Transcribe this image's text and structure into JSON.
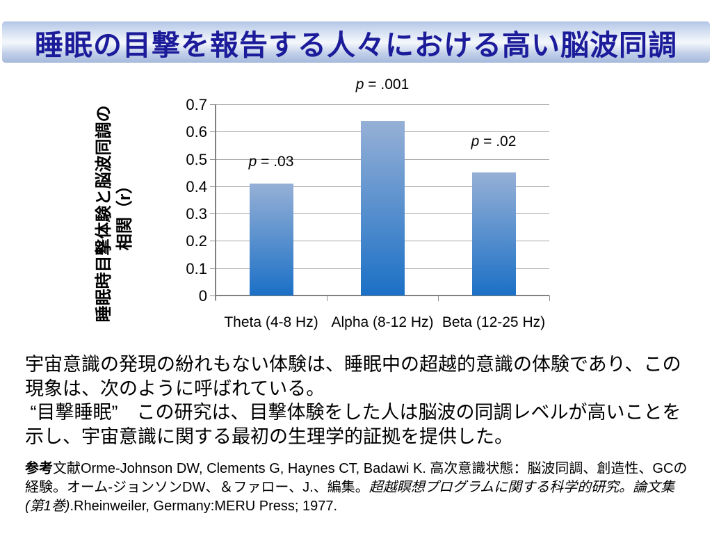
{
  "slide": {
    "title": "睡眠の目撃を報告する人々における高い脳波同調",
    "title_color": "#1c1c9b",
    "band_color_top": "#b7c9e8",
    "band_color_bottom": "#a8bbde"
  },
  "chart_data": {
    "type": "bar",
    "title": "",
    "categories": [
      "Theta (4-8 Hz)",
      "Alpha (8-12 Hz)",
      "Beta (12-25 Hz)"
    ],
    "values": [
      0.41,
      0.64,
      0.45
    ],
    "p_labels": [
      "p = .03",
      "p = .001",
      "p = .02"
    ],
    "ylabel_line1": "睡眠時目撃体験と脳波同調の",
    "ylabel_line2": "相関（r）",
    "xlabel": "",
    "ylim": [
      0,
      0.7
    ],
    "ytick_labels": [
      "0",
      "0.1",
      "0.2",
      "0.3",
      "0.4",
      "0.5",
      "0.6",
      "0.7"
    ],
    "grid": true,
    "legend": false,
    "bar_color_top": "#96b0d6",
    "bar_color_bottom": "#1b70c6",
    "gridline_color": "#a6a6a6",
    "axis_color": "#808080"
  },
  "body": {
    "paragraph1": "宇宙意識の発現の紛れもない体験は、睡眠中の超越的意識の体験であり、この現象は、次のように呼ばれている。",
    "paragraph2": " “目撃睡眠”　この研究は、目撃体験をした人は脳波の同調レベルが高いことを示し、宇宙意識に関する最初の生理学的証拠を提供した。"
  },
  "reference": {
    "bold": "参考",
    "normal1": "文献Orme-Johnson DW, Clements G, Haynes CT, Badawi K. 高次意識状態：脳波同調、創造性、GCの経験。オーム-ジョンソンDW、＆ファロー、J.、編集。",
    "italic": "超越瞑想プログラムに関する科学的研究。論文集(第1巻)",
    "normal2": ".Rheinweiler, Germany:MERU Press; 1977."
  }
}
